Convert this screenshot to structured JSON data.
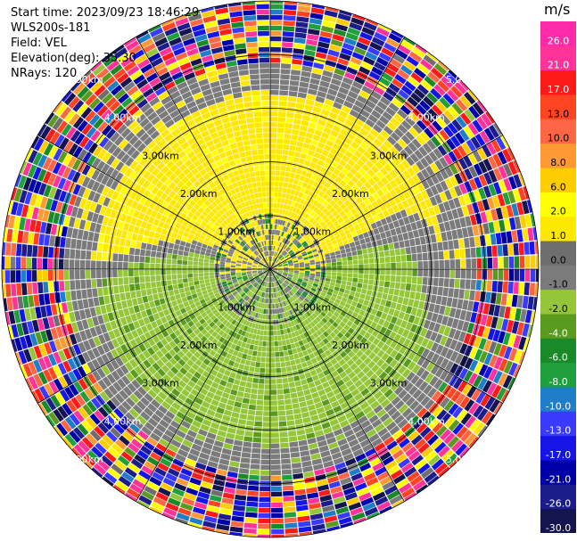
{
  "header": {
    "start_time": "Start time: 2023/09/23 18:46:29",
    "instrument": "WLS200s-181",
    "field": "Field: VEL",
    "elevation": "Elevation(deg): 35.30",
    "nrays": "NRays: 120"
  },
  "chart_data": {
    "type": "heatmap",
    "projection": "polar",
    "field": "VEL",
    "nrays": 120,
    "range_rings_km": [
      1.0,
      2.0,
      3.0,
      4.0,
      5.0
    ],
    "range_ring_labels": [
      "1.00km",
      "2.00km",
      "3.00km",
      "4.00km",
      "5.00km"
    ],
    "max_range_km": 5.0,
    "azimuth_spokes_deg": [
      0,
      30,
      60,
      90,
      120,
      150,
      180,
      210,
      240,
      270,
      300,
      330
    ],
    "colorbar": {
      "unit": "m/s",
      "levels": [
        -30.0,
        -26.0,
        -21.0,
        -17.0,
        -13.0,
        -10.0,
        -8.0,
        -6.0,
        -4.0,
        -2.0,
        -1.0,
        0.0,
        1.0,
        2.0,
        6.0,
        8.0,
        10.0,
        13.0,
        17.0,
        21.0,
        26.0
      ],
      "tick_labels": [
        "-30.0",
        "-26.0",
        "-21.0",
        "-17.0",
        "-13.0",
        "-10.0",
        "-8.0",
        "-6.0",
        "-4.0",
        "-2.0",
        "-1.0",
        "0.0",
        "1.0",
        "2.0",
        "6.0",
        "8.0",
        "10.0",
        "13.0",
        "17.0",
        "21.0",
        "26.0"
      ],
      "colors": [
        "#14144f",
        "#1c1c8c",
        "#0000a8",
        "#1515e6",
        "#3a3aff",
        "#1e7ec8",
        "#1fa03c",
        "#1a8a28",
        "#5a9a1e",
        "#95c63a",
        "#7b7b7b",
        "#6e6e6e",
        "#ffe800",
        "#ffff00",
        "#ffcc00",
        "#ff9933",
        "#ff6644",
        "#ff4422",
        "#ff1a1a",
        "#ff3399",
        "#ff2aa8"
      ]
    },
    "regions": [
      {
        "from_km": 0.0,
        "to_km": 1.0,
        "description": "near field",
        "dominant": "mixed -4 to 2 m/s"
      },
      {
        "from_km": 1.0,
        "to_km": 3.2,
        "north_half": "1.0 to 2.0 m/s",
        "south_half": "-2.0 to -1.0 m/s"
      },
      {
        "from_km": 3.2,
        "to_km": 3.8,
        "dominant": "-1.0 to 0.0 m/s"
      },
      {
        "from_km": 3.8,
        "to_km": 5.0,
        "dominant": "noise, full range -30 to 26 m/s"
      }
    ]
  }
}
